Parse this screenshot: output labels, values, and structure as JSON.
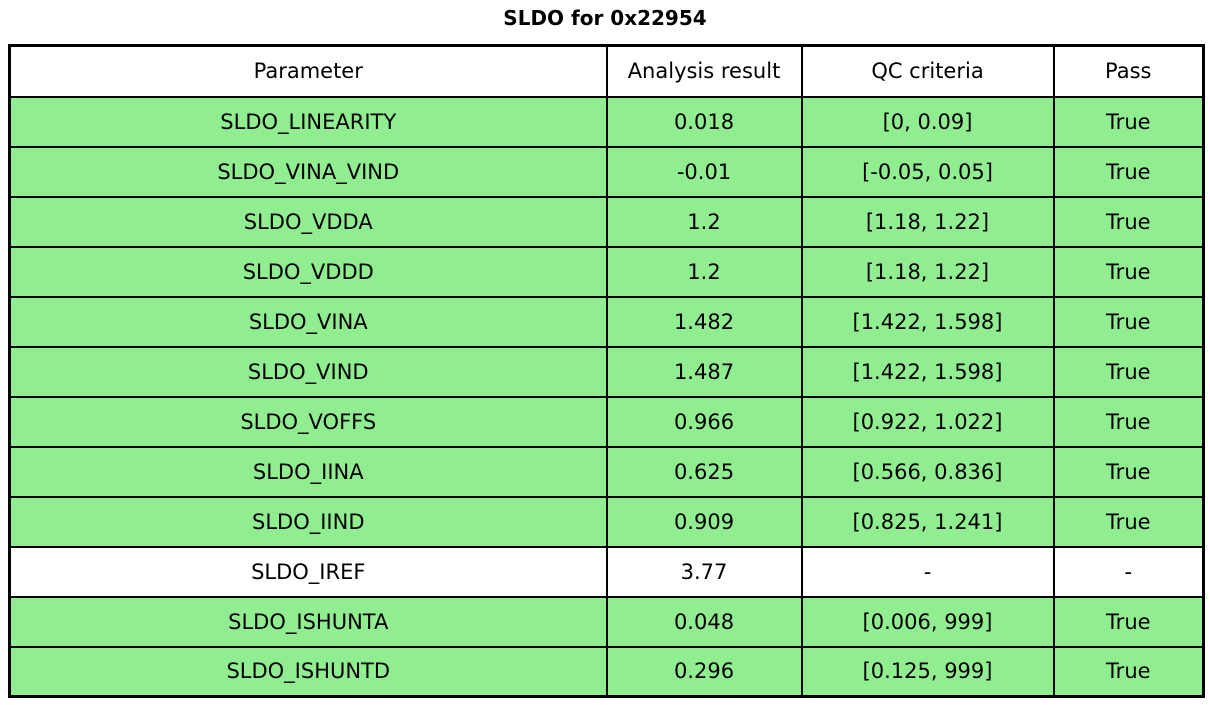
{
  "chart_data": {
    "type": "table",
    "title": "SLDO for 0x22954",
    "columns": [
      "Parameter",
      "Analysis result",
      "QC criteria",
      "Pass"
    ],
    "rows": [
      {
        "parameter": "SLDO_LINEARITY",
        "result": "0.018",
        "criteria": "[0, 0.09]",
        "pass": "True",
        "highlight": true
      },
      {
        "parameter": "SLDO_VINA_VIND",
        "result": "-0.01",
        "criteria": "[-0.05, 0.05]",
        "pass": "True",
        "highlight": true
      },
      {
        "parameter": "SLDO_VDDA",
        "result": "1.2",
        "criteria": "[1.18, 1.22]",
        "pass": "True",
        "highlight": true
      },
      {
        "parameter": "SLDO_VDDD",
        "result": "1.2",
        "criteria": "[1.18, 1.22]",
        "pass": "True",
        "highlight": true
      },
      {
        "parameter": "SLDO_VINA",
        "result": "1.482",
        "criteria": "[1.422, 1.598]",
        "pass": "True",
        "highlight": true
      },
      {
        "parameter": "SLDO_VIND",
        "result": "1.487",
        "criteria": "[1.422, 1.598]",
        "pass": "True",
        "highlight": true
      },
      {
        "parameter": "SLDO_VOFFS",
        "result": "0.966",
        "criteria": "[0.922, 1.022]",
        "pass": "True",
        "highlight": true
      },
      {
        "parameter": "SLDO_IINA",
        "result": "0.625",
        "criteria": "[0.566, 0.836]",
        "pass": "True",
        "highlight": true
      },
      {
        "parameter": "SLDO_IIND",
        "result": "0.909",
        "criteria": "[0.825, 1.241]",
        "pass": "True",
        "highlight": true
      },
      {
        "parameter": "SLDO_IREF",
        "result": "3.77",
        "criteria": "-",
        "pass": "-",
        "highlight": false
      },
      {
        "parameter": "SLDO_ISHUNTA",
        "result": "0.048",
        "criteria": "[0.006, 999]",
        "pass": "True",
        "highlight": true
      },
      {
        "parameter": "SLDO_ISHUNTD",
        "result": "0.296",
        "criteria": "[0.125, 999]",
        "pass": "True",
        "highlight": true
      }
    ],
    "colors": {
      "pass_row_bg": "#90EE90",
      "neutral_row_bg": "#FFFFFF",
      "header_bg": "#FFFFFF",
      "border": "#000000",
      "text": "#000000"
    },
    "layout": {
      "grid": "full-borders",
      "title_position": "top-center",
      "legend": "none"
    }
  }
}
